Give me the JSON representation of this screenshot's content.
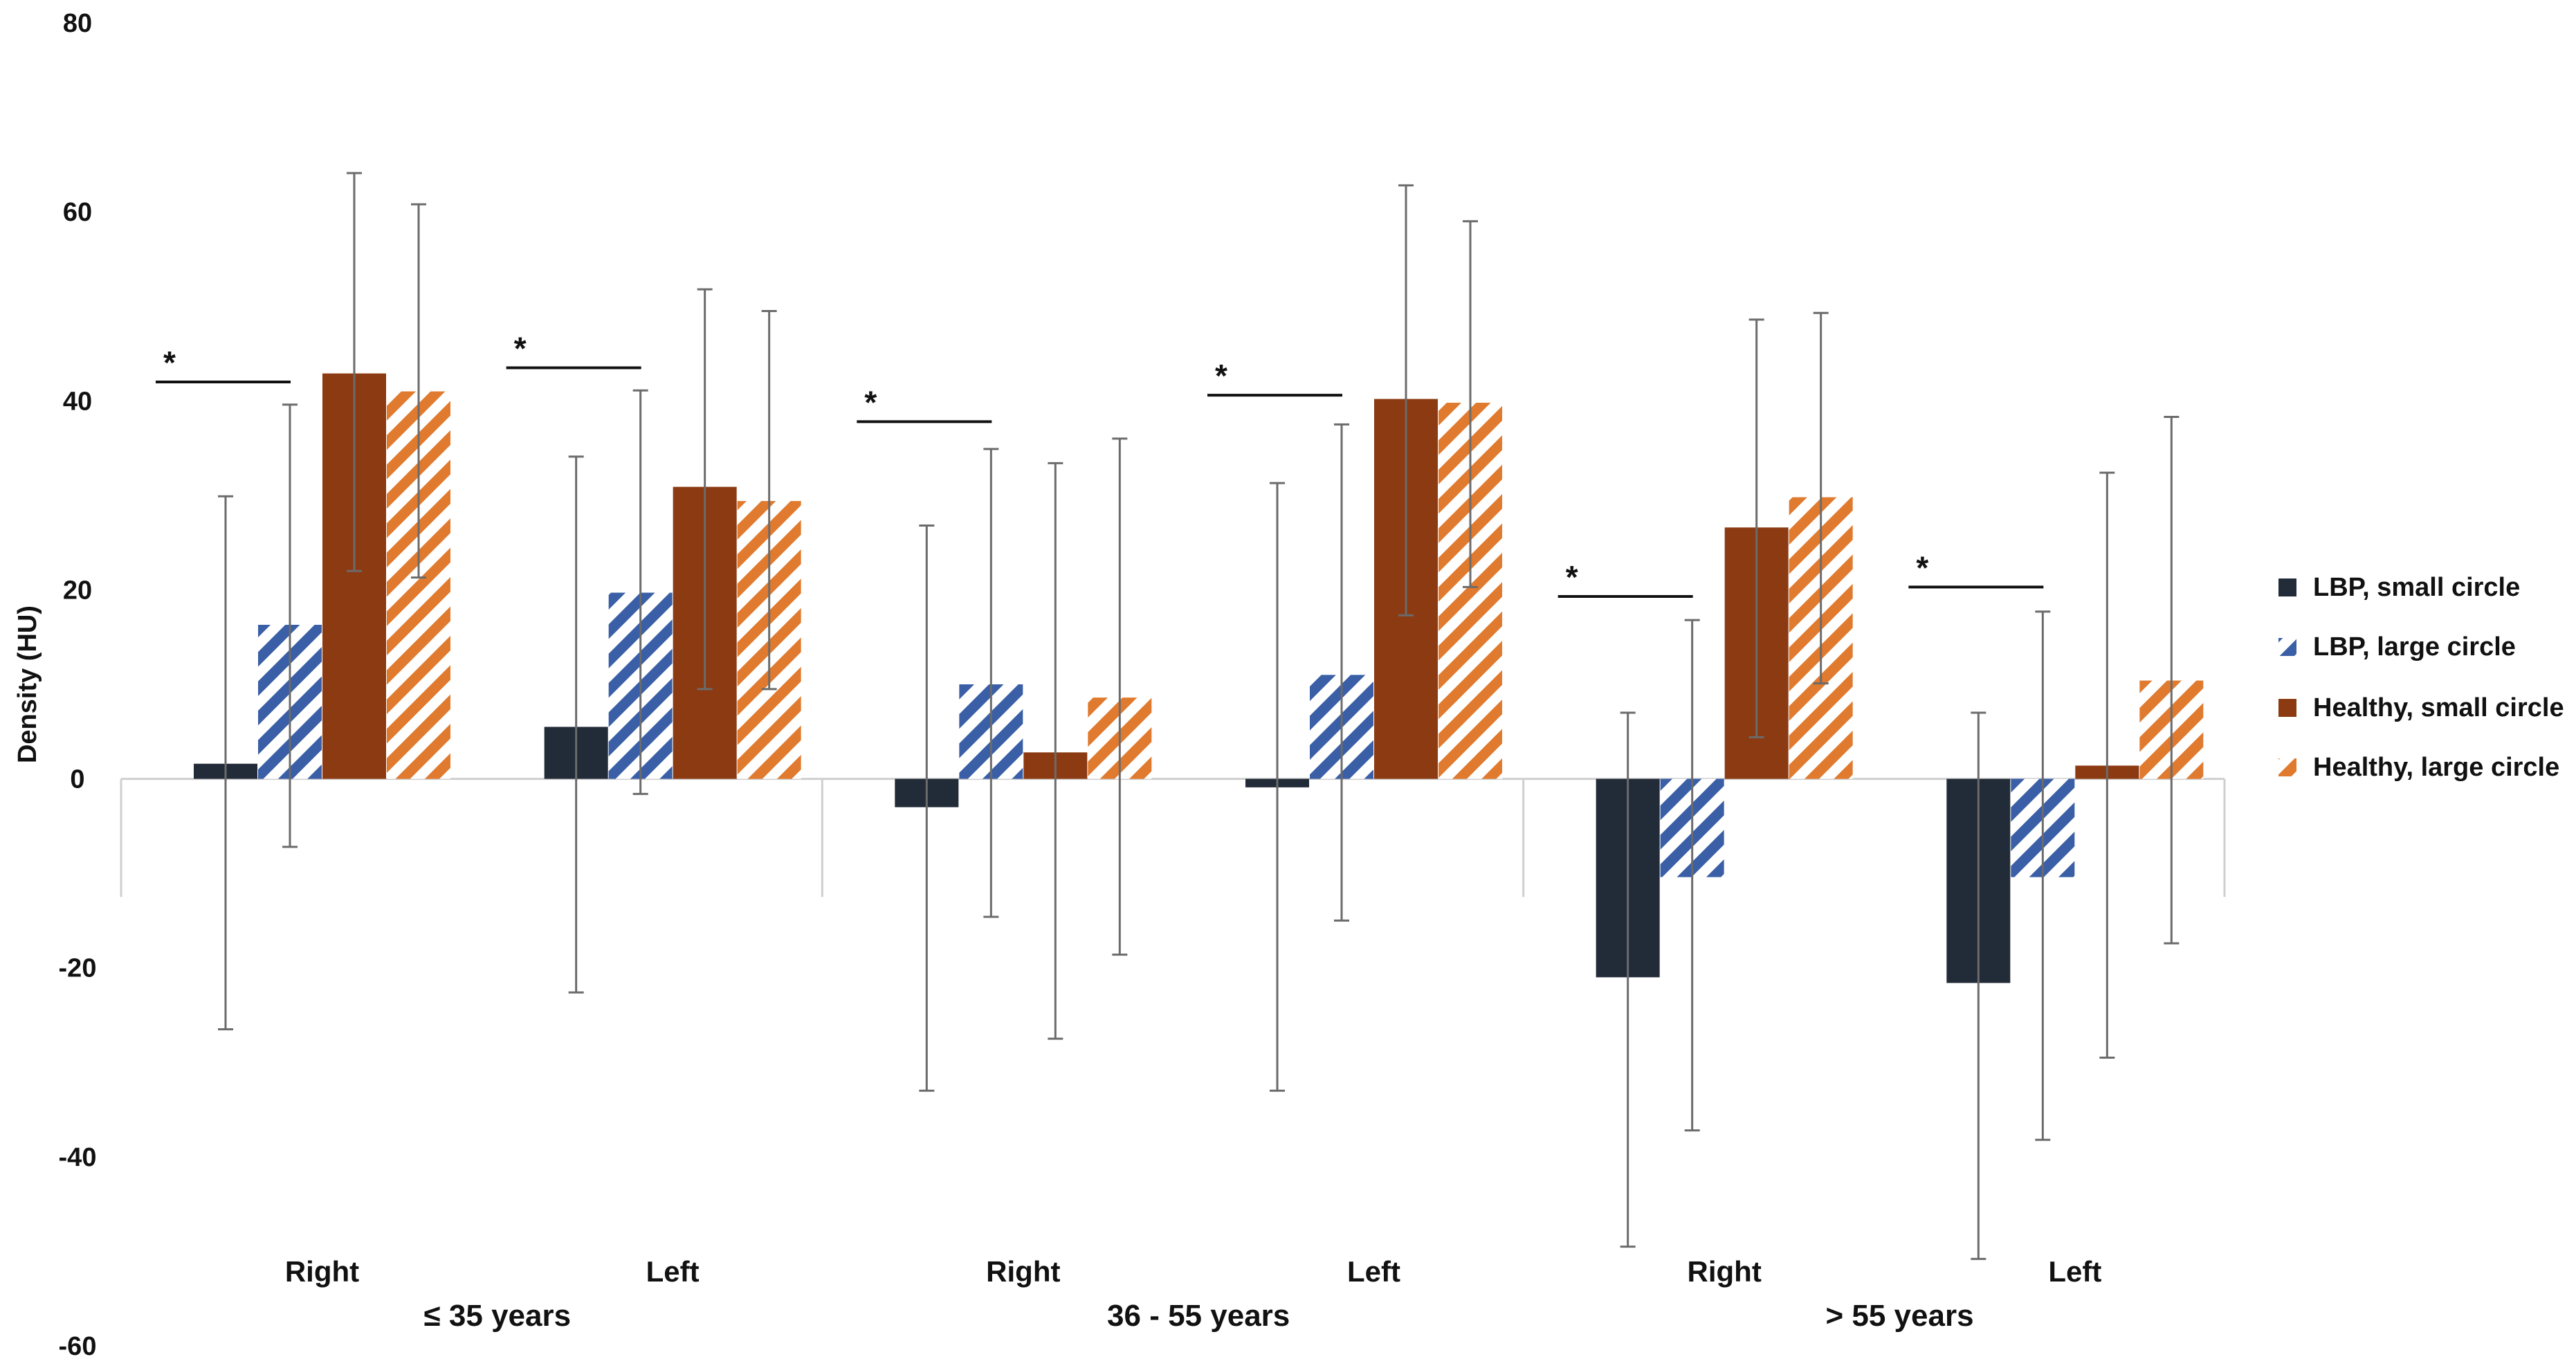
{
  "chart_data": {
    "type": "bar",
    "title": "",
    "ylabel": "Density (HU)",
    "ylim": [
      -60,
      80
    ],
    "yticks": [
      80,
      60,
      40,
      20,
      0,
      -20,
      -40,
      -60
    ],
    "groups": [
      {
        "label": "≤ 35 years",
        "categories": [
          "Right",
          "Left"
        ]
      },
      {
        "label": "36 - 55 years",
        "categories": [
          "Right",
          "Left"
        ]
      },
      {
        "label": "> 55 years",
        "categories": [
          "Right",
          "Left"
        ]
      }
    ],
    "categories": [
      "Right",
      "Left",
      "Right",
      "Left",
      "Right",
      "Left"
    ],
    "series": [
      {
        "name": "LBP, small circle",
        "color": "#222b38",
        "pattern": "solid",
        "values": [
          1.6,
          5.5,
          -3.0,
          -0.9,
          -21.0,
          -21.6
        ],
        "err_low": [
          -26.5,
          -22.6,
          -33.0,
          -33.0,
          -49.5,
          -50.8
        ],
        "err_high": [
          29.9,
          34.1,
          26.8,
          31.3,
          7.0,
          7.0
        ]
      },
      {
        "name": "LBP, large circle",
        "color": "#3a5fa6",
        "pattern": "hatch",
        "values": [
          16.3,
          19.7,
          10.0,
          11.0,
          -10.4,
          -10.4
        ],
        "err_low": [
          -7.2,
          -1.6,
          -14.6,
          -15.0,
          -37.2,
          -38.2
        ],
        "err_high": [
          39.6,
          41.1,
          34.9,
          37.5,
          16.8,
          17.7
        ]
      },
      {
        "name": "Healthy, small circle",
        "color": "#8b3a12",
        "pattern": "solid",
        "values": [
          42.9,
          30.9,
          2.8,
          40.2,
          26.6,
          1.4
        ],
        "err_low": [
          22.0,
          9.5,
          -27.5,
          17.3,
          4.4,
          -29.5
        ],
        "err_high": [
          64.1,
          51.8,
          33.4,
          62.8,
          48.6,
          32.4
        ]
      },
      {
        "name": "Healthy, large circle",
        "color": "#e07a2e",
        "pattern": "hatch",
        "values": [
          41.0,
          29.4,
          8.6,
          39.8,
          29.8,
          10.4
        ],
        "err_low": [
          21.3,
          9.5,
          -18.6,
          20.3,
          10.1,
          -17.4
        ],
        "err_high": [
          60.8,
          49.5,
          36.0,
          59.0,
          49.3,
          38.3
        ]
      }
    ],
    "significance": [
      {
        "category_index": 0,
        "y": 42.0,
        "label": "*"
      },
      {
        "category_index": 1,
        "y": 43.5,
        "label": "*"
      },
      {
        "category_index": 2,
        "y": 37.8,
        "label": "*"
      },
      {
        "category_index": 3,
        "y": 40.6,
        "label": "*"
      },
      {
        "category_index": 4,
        "y": 19.3,
        "label": "*"
      },
      {
        "category_index": 5,
        "y": 20.3,
        "label": "*"
      }
    ],
    "legend_position": "right",
    "grid": false
  }
}
